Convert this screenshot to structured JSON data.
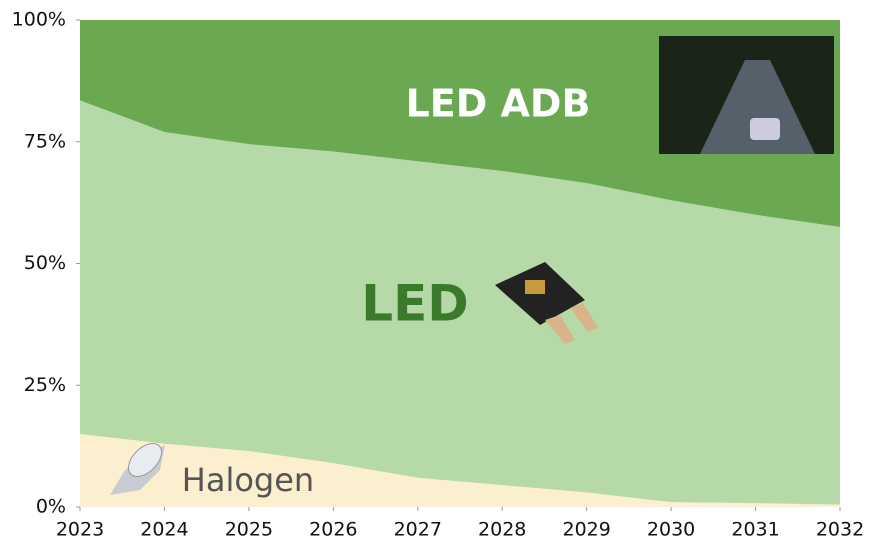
{
  "chart_data": {
    "type": "stacked_area",
    "x": [
      2023,
      2024,
      2025,
      2026,
      2027,
      2028,
      2029,
      2030,
      2031,
      2032
    ],
    "xlim": [
      2023,
      2032
    ],
    "xticks": [
      2023,
      2024,
      2025,
      2026,
      2027,
      2028,
      2029,
      2030,
      2031,
      2032
    ],
    "ylim": [
      0,
      100
    ],
    "yticks": [
      {
        "value": 0,
        "label": "0%"
      },
      {
        "value": 25,
        "label": "25%"
      },
      {
        "value": 50,
        "label": "50%"
      },
      {
        "value": 75,
        "label": "75%"
      },
      {
        "value": 100,
        "label": "100%"
      }
    ],
    "series": [
      {
        "name": "Halogen",
        "color": "#fcefd0",
        "values": [
          15,
          13,
          11.5,
          9,
          6,
          4.5,
          3,
          1,
          0.8,
          0.5
        ]
      },
      {
        "name": "LED",
        "color": "#b6d9a8",
        "values": [
          68.5,
          64,
          63,
          64,
          65,
          64.5,
          63.5,
          62,
          59.2,
          57
        ]
      },
      {
        "name": "LED ADB",
        "color": "#6aa951",
        "values": [
          16.5,
          23,
          25.5,
          27,
          29,
          31,
          33.5,
          37,
          40,
          42.5
        ]
      }
    ]
  }
}
